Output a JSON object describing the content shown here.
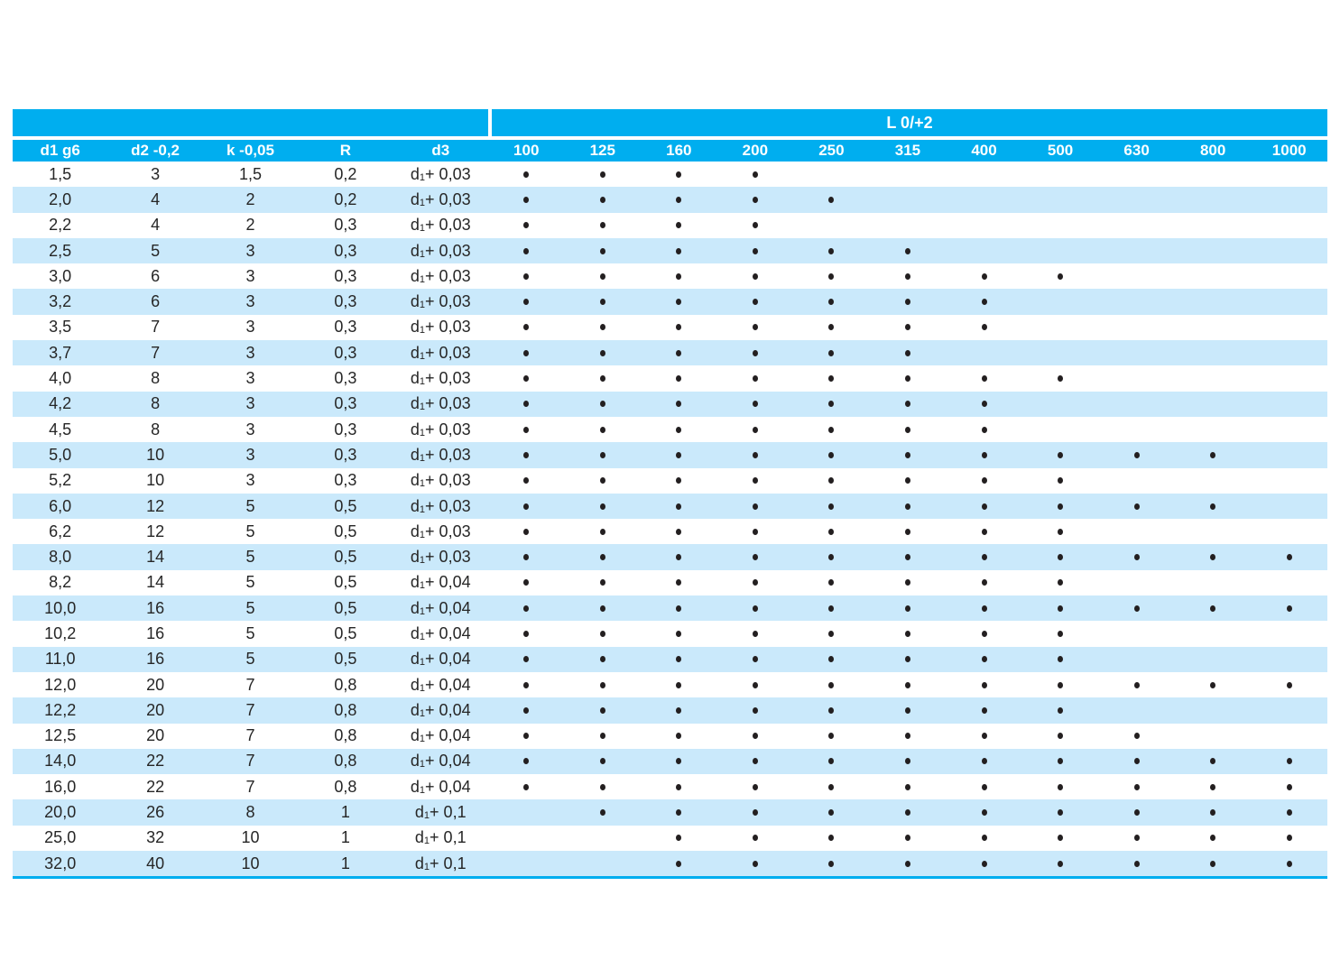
{
  "table": {
    "length_group_label": "L 0/+2",
    "columns_left": [
      "d1 g6",
      "d2 -0,2",
      "k -0,05",
      "R",
      "d3"
    ],
    "length_columns": [
      "100",
      "125",
      "160",
      "200",
      "250",
      "315",
      "400",
      "500",
      "630",
      "800",
      "1000"
    ],
    "colors": {
      "header_cyan": "#00AEEF",
      "row_alt": "#CAE9FB",
      "dot": "#231F20",
      "text": "#262626"
    },
    "rows": [
      {
        "d1": "1,5",
        "d2": "3",
        "k": "1,5",
        "r": "0,2",
        "d3": "d1 + 0,03",
        "lengths": [
          1,
          1,
          1,
          1,
          0,
          0,
          0,
          0,
          0,
          0,
          0
        ]
      },
      {
        "d1": "2,0",
        "d2": "4",
        "k": "2",
        "r": "0,2",
        "d3": "d1 + 0,03",
        "lengths": [
          1,
          1,
          1,
          1,
          1,
          0,
          0,
          0,
          0,
          0,
          0
        ]
      },
      {
        "d1": "2,2",
        "d2": "4",
        "k": "2",
        "r": "0,3",
        "d3": "d1 + 0,03",
        "lengths": [
          1,
          1,
          1,
          1,
          0,
          0,
          0,
          0,
          0,
          0,
          0
        ]
      },
      {
        "d1": "2,5",
        "d2": "5",
        "k": "3",
        "r": "0,3",
        "d3": "d1 + 0,03",
        "lengths": [
          1,
          1,
          1,
          1,
          1,
          1,
          0,
          0,
          0,
          0,
          0
        ]
      },
      {
        "d1": "3,0",
        "d2": "6",
        "k": "3",
        "r": "0,3",
        "d3": "d1 + 0,03",
        "lengths": [
          1,
          1,
          1,
          1,
          1,
          1,
          1,
          1,
          0,
          0,
          0
        ]
      },
      {
        "d1": "3,2",
        "d2": "6",
        "k": "3",
        "r": "0,3",
        "d3": "d1 + 0,03",
        "lengths": [
          1,
          1,
          1,
          1,
          1,
          1,
          1,
          0,
          0,
          0,
          0
        ]
      },
      {
        "d1": "3,5",
        "d2": "7",
        "k": "3",
        "r": "0,3",
        "d3": "d1 + 0,03",
        "lengths": [
          1,
          1,
          1,
          1,
          1,
          1,
          1,
          0,
          0,
          0,
          0
        ]
      },
      {
        "d1": "3,7",
        "d2": "7",
        "k": "3",
        "r": "0,3",
        "d3": "d1 + 0,03",
        "lengths": [
          1,
          1,
          1,
          1,
          1,
          1,
          0,
          0,
          0,
          0,
          0
        ]
      },
      {
        "d1": "4,0",
        "d2": "8",
        "k": "3",
        "r": "0,3",
        "d3": "d1 + 0,03",
        "lengths": [
          1,
          1,
          1,
          1,
          1,
          1,
          1,
          1,
          0,
          0,
          0
        ]
      },
      {
        "d1": "4,2",
        "d2": "8",
        "k": "3",
        "r": "0,3",
        "d3": "d1 + 0,03",
        "lengths": [
          1,
          1,
          1,
          1,
          1,
          1,
          1,
          0,
          0,
          0,
          0
        ]
      },
      {
        "d1": "4,5",
        "d2": "8",
        "k": "3",
        "r": "0,3",
        "d3": "d1 + 0,03",
        "lengths": [
          1,
          1,
          1,
          1,
          1,
          1,
          1,
          0,
          0,
          0,
          0
        ]
      },
      {
        "d1": "5,0",
        "d2": "10",
        "k": "3",
        "r": "0,3",
        "d3": "d1 + 0,03",
        "lengths": [
          1,
          1,
          1,
          1,
          1,
          1,
          1,
          1,
          1,
          1,
          0
        ]
      },
      {
        "d1": "5,2",
        "d2": "10",
        "k": "3",
        "r": "0,3",
        "d3": "d1 + 0,03",
        "lengths": [
          1,
          1,
          1,
          1,
          1,
          1,
          1,
          1,
          0,
          0,
          0
        ]
      },
      {
        "d1": "6,0",
        "d2": "12",
        "k": "5",
        "r": "0,5",
        "d3": "d1 + 0,03",
        "lengths": [
          1,
          1,
          1,
          1,
          1,
          1,
          1,
          1,
          1,
          1,
          0
        ]
      },
      {
        "d1": "6,2",
        "d2": "12",
        "k": "5",
        "r": "0,5",
        "d3": "d1 + 0,03",
        "lengths": [
          1,
          1,
          1,
          1,
          1,
          1,
          1,
          1,
          0,
          0,
          0
        ]
      },
      {
        "d1": "8,0",
        "d2": "14",
        "k": "5",
        "r": "0,5",
        "d3": "d1 + 0,03",
        "lengths": [
          1,
          1,
          1,
          1,
          1,
          1,
          1,
          1,
          1,
          1,
          1
        ]
      },
      {
        "d1": "8,2",
        "d2": "14",
        "k": "5",
        "r": "0,5",
        "d3": "d1 + 0,04",
        "lengths": [
          1,
          1,
          1,
          1,
          1,
          1,
          1,
          1,
          0,
          0,
          0
        ]
      },
      {
        "d1": "10,0",
        "d2": "16",
        "k": "5",
        "r": "0,5",
        "d3": "d1 + 0,04",
        "lengths": [
          1,
          1,
          1,
          1,
          1,
          1,
          1,
          1,
          1,
          1,
          1
        ]
      },
      {
        "d1": "10,2",
        "d2": "16",
        "k": "5",
        "r": "0,5",
        "d3": "d1 + 0,04",
        "lengths": [
          1,
          1,
          1,
          1,
          1,
          1,
          1,
          1,
          0,
          0,
          0
        ]
      },
      {
        "d1": "11,0",
        "d2": "16",
        "k": "5",
        "r": "0,5",
        "d3": "d1 + 0,04",
        "lengths": [
          1,
          1,
          1,
          1,
          1,
          1,
          1,
          1,
          0,
          0,
          0
        ]
      },
      {
        "d1": "12,0",
        "d2": "20",
        "k": "7",
        "r": "0,8",
        "d3": "d1 + 0,04",
        "lengths": [
          1,
          1,
          1,
          1,
          1,
          1,
          1,
          1,
          1,
          1,
          1
        ]
      },
      {
        "d1": "12,2",
        "d2": "20",
        "k": "7",
        "r": "0,8",
        "d3": "d1 + 0,04",
        "lengths": [
          1,
          1,
          1,
          1,
          1,
          1,
          1,
          1,
          0,
          0,
          0
        ]
      },
      {
        "d1": "12,5",
        "d2": "20",
        "k": "7",
        "r": "0,8",
        "d3": "d1 + 0,04",
        "lengths": [
          1,
          1,
          1,
          1,
          1,
          1,
          1,
          1,
          1,
          0,
          0
        ]
      },
      {
        "d1": "14,0",
        "d2": "22",
        "k": "7",
        "r": "0,8",
        "d3": "d1 + 0,04",
        "lengths": [
          1,
          1,
          1,
          1,
          1,
          1,
          1,
          1,
          1,
          1,
          1
        ]
      },
      {
        "d1": "16,0",
        "d2": "22",
        "k": "7",
        "r": "0,8",
        "d3": "d1 + 0,04",
        "lengths": [
          1,
          1,
          1,
          1,
          1,
          1,
          1,
          1,
          1,
          1,
          1
        ]
      },
      {
        "d1": "20,0",
        "d2": "26",
        "k": "8",
        "r": "1",
        "d3": "d1 + 0,1",
        "lengths": [
          0,
          1,
          1,
          1,
          1,
          1,
          1,
          1,
          1,
          1,
          1
        ]
      },
      {
        "d1": "25,0",
        "d2": "32",
        "k": "10",
        "r": "1",
        "d3": "d1 + 0,1",
        "lengths": [
          0,
          0,
          1,
          1,
          1,
          1,
          1,
          1,
          1,
          1,
          1
        ]
      },
      {
        "d1": "32,0",
        "d2": "40",
        "k": "10",
        "r": "1",
        "d3": "d1 + 0,1",
        "lengths": [
          0,
          0,
          1,
          1,
          1,
          1,
          1,
          1,
          1,
          1,
          1
        ]
      }
    ]
  }
}
